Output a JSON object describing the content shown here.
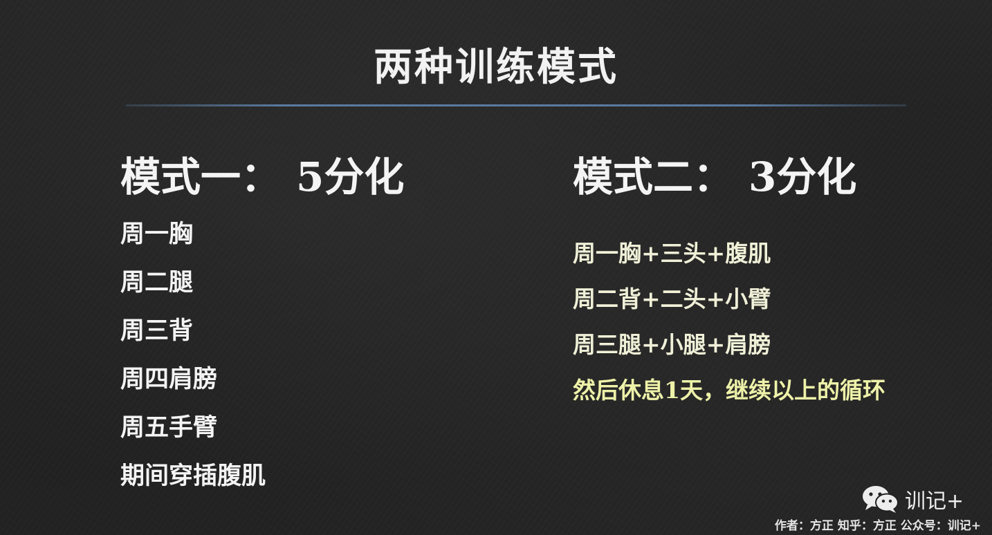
{
  "slide": {
    "title": "两种训练模式",
    "mode_one": {
      "label": "模式一：",
      "split": "5分化",
      "items": [
        "周一胸",
        "周二腿",
        "周三背",
        "周四肩膀",
        "周五手臂",
        "期间穿插腹肌"
      ]
    },
    "mode_two": {
      "label": "模式二：",
      "split": "3分化",
      "items": [
        "周一胸+三头+腹肌",
        "周二背+二头+小臂",
        "周三腿+小腿+肩膀"
      ],
      "note": "然后休息1天，继续以上的循环"
    }
  },
  "watermark": {
    "icon": "wechat-icon",
    "brand": "训记+",
    "credit": "作者：方正  知乎：方正  公众号：训记+"
  },
  "colors": {
    "background": "#222222",
    "text": "#f4f4f4",
    "divider": "#5a7aa0",
    "note": "#eef2a8"
  }
}
